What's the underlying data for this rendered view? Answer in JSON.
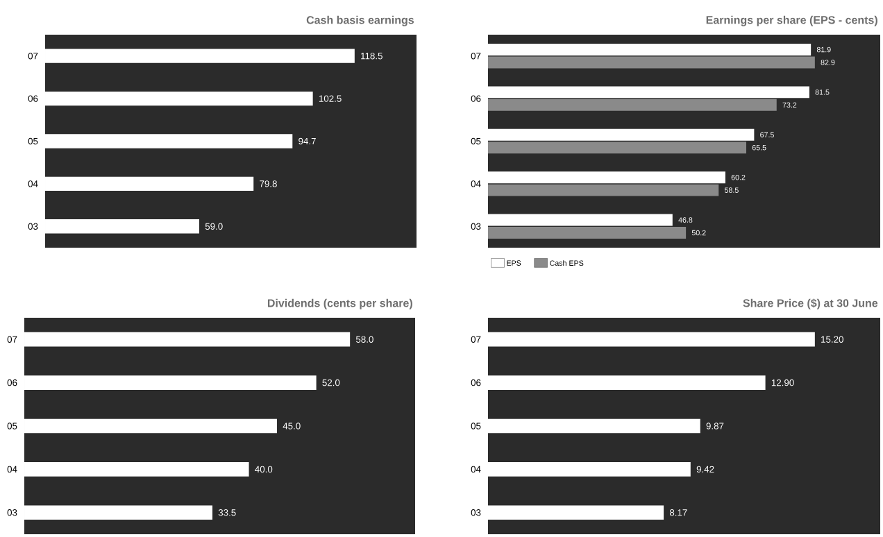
{
  "chart_data": [
    {
      "type": "bar",
      "orientation": "horizontal",
      "title": "Cash basis earnings",
      "categories": [
        "07",
        "06",
        "05",
        "04",
        "03"
      ],
      "values": [
        118.5,
        102.5,
        94.7,
        79.8,
        59.0
      ],
      "value_labels": [
        "118.5",
        "102.5",
        "94.7",
        "79.8",
        "59.0"
      ],
      "color": "#ffffff"
    },
    {
      "type": "bar",
      "orientation": "horizontal",
      "title": "Earnings per share (EPS - cents)",
      "categories": [
        "07",
        "06",
        "05",
        "04",
        "03"
      ],
      "legend": "bottom left",
      "series": [
        {
          "name": "EPS",
          "color": "#ffffff",
          "values": [
            81.9,
            81.5,
            67.5,
            60.2,
            46.8
          ],
          "value_labels": [
            "81.9",
            "81.5",
            "67.5",
            "60.2",
            "46.8"
          ]
        },
        {
          "name": "Cash EPS",
          "color": "#8a8a8a",
          "values": [
            82.9,
            73.2,
            65.5,
            58.5,
            50.2
          ],
          "value_labels": [
            "82.9",
            "73.2",
            "65.5",
            "58.5",
            "50.2"
          ]
        }
      ]
    },
    {
      "type": "bar",
      "orientation": "horizontal",
      "title": "Dividends (cents per share)",
      "categories": [
        "07",
        "06",
        "05",
        "04",
        "03"
      ],
      "values": [
        58.0,
        52.0,
        45.0,
        40.0,
        33.5
      ],
      "value_labels": [
        "58.0",
        "52.0",
        "45.0",
        "40.0",
        "33.5"
      ],
      "color": "#ffffff"
    },
    {
      "type": "bar",
      "orientation": "horizontal",
      "title": "Share Price ($) at 30 June",
      "categories": [
        "07",
        "06",
        "05",
        "04",
        "03"
      ],
      "values": [
        15.2,
        12.9,
        9.87,
        9.42,
        8.17
      ],
      "value_labels": [
        "15.20",
        "12.90",
        "9.87",
        "9.42",
        "8.17"
      ],
      "color": "#ffffff"
    }
  ]
}
